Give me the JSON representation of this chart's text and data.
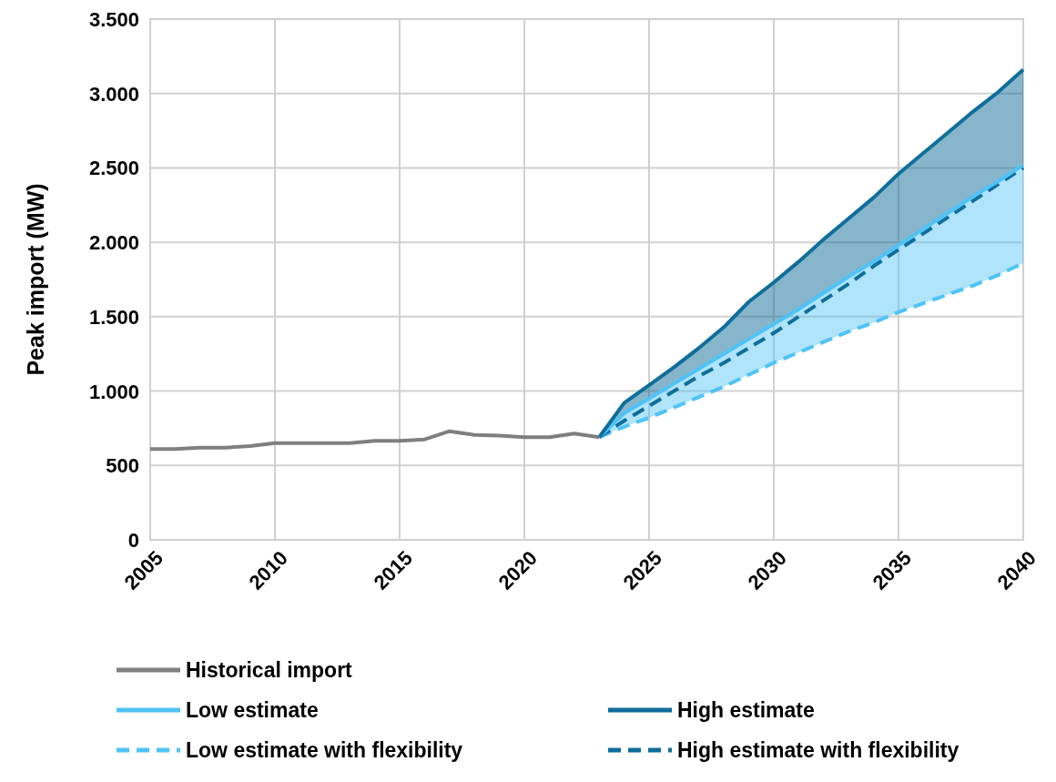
{
  "chart_data": {
    "type": "line",
    "ylabel": "Peak import (MW)",
    "xlim": [
      2005,
      2040
    ],
    "xticks": [
      2005,
      2010,
      2015,
      2020,
      2025,
      2030,
      2035,
      2040
    ],
    "ylim": [
      0,
      3500
    ],
    "yticks": [
      {
        "value": 0,
        "label": "0"
      },
      {
        "value": 500,
        "label": "500"
      },
      {
        "value": 1000,
        "label": "1.000"
      },
      {
        "value": 1500,
        "label": "1.500"
      },
      {
        "value": 2000,
        "label": "2.000"
      },
      {
        "value": 2500,
        "label": "2.500"
      },
      {
        "value": 3000,
        "label": "3.000"
      },
      {
        "value": 3500,
        "label": "3.500"
      }
    ],
    "grid": true,
    "legend": "bottom",
    "marker": "none",
    "series": [
      {
        "name": "Historical import",
        "color": "#7f7f7f",
        "line_style": "solid",
        "x": [
          2005,
          2006,
          2007,
          2008,
          2009,
          2010,
          2011,
          2012,
          2013,
          2014,
          2015,
          2016,
          2017,
          2018,
          2019,
          2020,
          2021,
          2022,
          2023
        ],
        "values": [
          610,
          610,
          620,
          620,
          630,
          650,
          650,
          650,
          650,
          665,
          665,
          675,
          730,
          705,
          700,
          690,
          690,
          715,
          690
        ]
      },
      {
        "name": "High estimate",
        "color": "#0f6e9a",
        "line_style": "solid",
        "x": [
          2023,
          2024,
          2025,
          2026,
          2027,
          2028,
          2029,
          2030,
          2031,
          2032,
          2033,
          2034,
          2035,
          2036,
          2037,
          2038,
          2039,
          2040
        ],
        "values": [
          690,
          920,
          1040,
          1160,
          1290,
          1430,
          1600,
          1730,
          1870,
          2020,
          2160,
          2300,
          2460,
          2600,
          2740,
          2880,
          3010,
          3160
        ],
        "lower": [
          690,
          850,
          950,
          1050,
          1150,
          1250,
          1350,
          1450,
          1550,
          1660,
          1770,
          1870,
          1980,
          2090,
          2200,
          2310,
          2410,
          2520
        ],
        "upper": [
          690,
          920,
          1040,
          1160,
          1290,
          1430,
          1600,
          1730,
          1870,
          2020,
          2160,
          2300,
          2460,
          2600,
          2740,
          2880,
          3010,
          3160
        ]
      },
      {
        "name": "Low estimate",
        "color": "#4fc3f7",
        "line_style": "solid",
        "x": [
          2023,
          2024,
          2025,
          2026,
          2027,
          2028,
          2029,
          2030,
          2031,
          2032,
          2033,
          2034,
          2035,
          2036,
          2037,
          2038,
          2039,
          2040
        ],
        "values": [
          690,
          850,
          950,
          1050,
          1150,
          1250,
          1350,
          1450,
          1550,
          1660,
          1770,
          1870,
          1980,
          2090,
          2200,
          2310,
          2410,
          2520
        ],
        "lower": [
          690,
          760,
          820,
          890,
          960,
          1030,
          1110,
          1190,
          1260,
          1330,
          1400,
          1460,
          1530,
          1590,
          1650,
          1710,
          1780,
          1860
        ],
        "upper": [
          690,
          850,
          950,
          1050,
          1150,
          1250,
          1350,
          1450,
          1550,
          1660,
          1770,
          1870,
          1980,
          2090,
          2200,
          2310,
          2410,
          2520
        ]
      },
      {
        "name": "High estimate with flexibility",
        "color": "#0f6e9a",
        "line_style": "dashed",
        "x": [
          2023,
          2024,
          2025,
          2026,
          2027,
          2028,
          2029,
          2030,
          2031,
          2032,
          2033,
          2034,
          2035,
          2036,
          2037,
          2038,
          2039,
          2040
        ],
        "values": [
          690,
          800,
          900,
          1000,
          1100,
          1190,
          1290,
          1390,
          1500,
          1610,
          1720,
          1840,
          1950,
          2060,
          2170,
          2280,
          2390,
          2500
        ]
      },
      {
        "name": "Low estimate with flexibility",
        "color": "#4fc3f7",
        "line_style": "dashed",
        "x": [
          2023,
          2024,
          2025,
          2026,
          2027,
          2028,
          2029,
          2030,
          2031,
          2032,
          2033,
          2034,
          2035,
          2036,
          2037,
          2038,
          2039,
          2040
        ],
        "values": [
          690,
          760,
          820,
          890,
          960,
          1030,
          1110,
          1190,
          1260,
          1330,
          1400,
          1460,
          1530,
          1590,
          1650,
          1710,
          1780,
          1860
        ]
      }
    ]
  }
}
